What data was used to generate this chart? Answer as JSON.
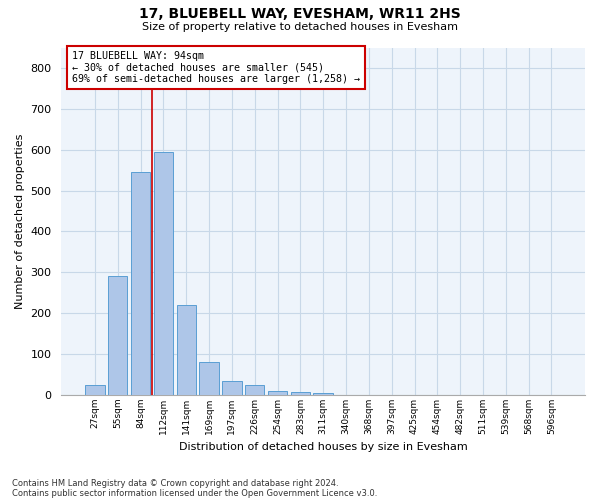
{
  "title1": "17, BLUEBELL WAY, EVESHAM, WR11 2HS",
  "title2": "Size of property relative to detached houses in Evesham",
  "xlabel": "Distribution of detached houses by size in Evesham",
  "ylabel": "Number of detached properties",
  "categories": [
    "27sqm",
    "55sqm",
    "84sqm",
    "112sqm",
    "141sqm",
    "169sqm",
    "197sqm",
    "226sqm",
    "254sqm",
    "283sqm",
    "311sqm",
    "340sqm",
    "368sqm",
    "397sqm",
    "425sqm",
    "454sqm",
    "482sqm",
    "511sqm",
    "539sqm",
    "568sqm",
    "596sqm"
  ],
  "values": [
    25,
    290,
    545,
    595,
    220,
    80,
    35,
    25,
    10,
    7,
    5,
    0,
    0,
    0,
    0,
    0,
    0,
    0,
    0,
    0,
    0
  ],
  "bar_color": "#aec6e8",
  "bar_edge_color": "#5a9fd4",
  "bar_width": 0.85,
  "grid_color": "#c8d8e8",
  "background_color": "#eef4fb",
  "red_line_x": 2.48,
  "annotation_line1": "17 BLUEBELL WAY: 94sqm",
  "annotation_line2": "← 30% of detached houses are smaller (545)",
  "annotation_line3": "69% of semi-detached houses are larger (1,258) →",
  "annotation_box_color": "#ffffff",
  "annotation_box_edge": "#cc0000",
  "ylim": [
    0,
    850
  ],
  "yticks": [
    0,
    100,
    200,
    300,
    400,
    500,
    600,
    700,
    800
  ],
  "footnote1": "Contains HM Land Registry data © Crown copyright and database right 2024.",
  "footnote2": "Contains public sector information licensed under the Open Government Licence v3.0."
}
